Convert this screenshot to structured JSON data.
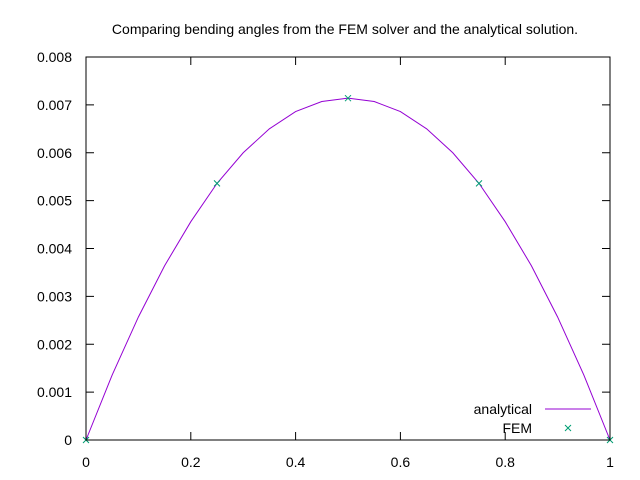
{
  "chart_data": {
    "type": "line",
    "title": "Comparing bending angles from the FEM solver and the analytical solution.",
    "xlabel": "",
    "ylabel": "",
    "xlim": [
      0,
      1
    ],
    "ylim": [
      0,
      0.008
    ],
    "xticks": [
      "0",
      "0.2",
      "0.4",
      "0.6",
      "0.8",
      "1"
    ],
    "yticks": [
      "0",
      "0.001",
      "0.002",
      "0.003",
      "0.004",
      "0.005",
      "0.006",
      "0.007",
      "0.008"
    ],
    "grid": false,
    "legend_position": "bottom-right",
    "series": [
      {
        "name": "analytical",
        "style": "line",
        "color": "#9400d3",
        "x": [
          0,
          0.05,
          0.1,
          0.15,
          0.2,
          0.25,
          0.3,
          0.35,
          0.4,
          0.45,
          0.5,
          0.55,
          0.6,
          0.65,
          0.7,
          0.75,
          0.8,
          0.85,
          0.9,
          0.95,
          1
        ],
        "y": [
          0,
          0.00136,
          0.00257,
          0.00364,
          0.00456,
          0.00536,
          0.006,
          0.0065,
          0.00686,
          0.00707,
          0.00714,
          0.00707,
          0.00686,
          0.0065,
          0.006,
          0.00536,
          0.00456,
          0.00364,
          0.00257,
          0.00136,
          0
        ]
      },
      {
        "name": "FEM",
        "style": "points",
        "marker": "x",
        "color": "#009e73",
        "x": [
          0,
          0.25,
          0.5,
          0.75,
          1
        ],
        "y": [
          0,
          0.00536,
          0.00714,
          0.00536,
          0
        ]
      }
    ]
  }
}
